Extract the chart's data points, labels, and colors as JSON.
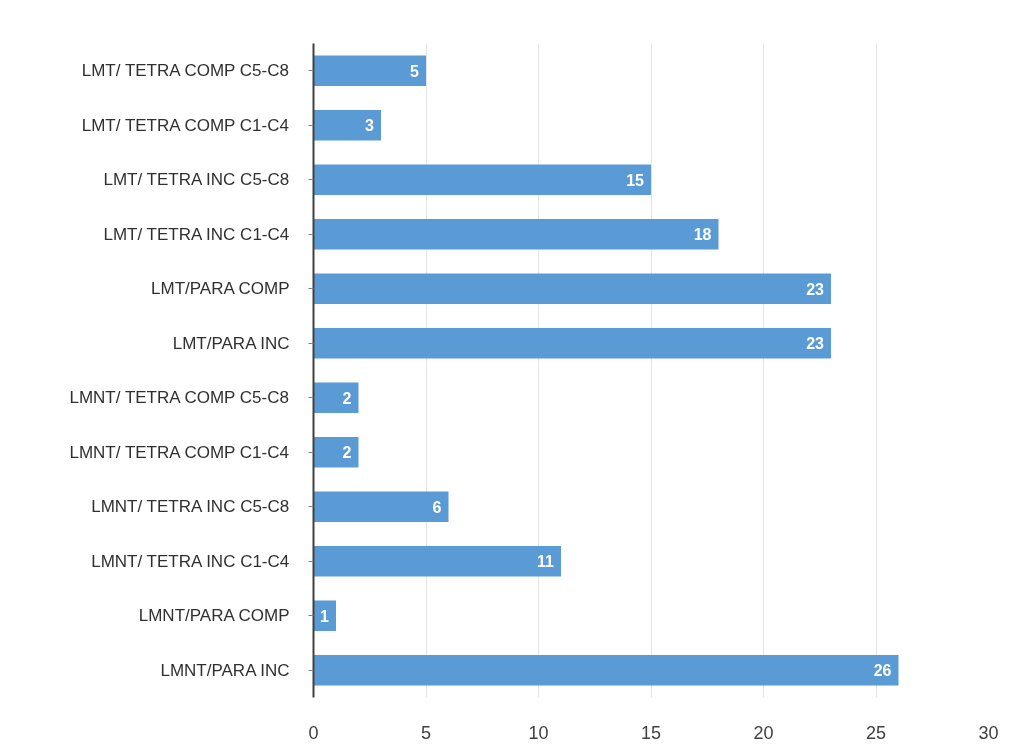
{
  "chart_data": {
    "type": "bar",
    "orientation": "horizontal",
    "categories": [
      "LMT/ TETRA COMP C5-C8",
      "LMT/ TETRA COMP C1-C4",
      "LMT/ TETRA INC C5-C8",
      "LMT/ TETRA INC C1-C4",
      "LMT/PARA COMP",
      "LMT/PARA INC",
      "LMNT/ TETRA COMP C5-C8",
      "LMNT/ TETRA COMP C1-C4",
      "LMNT/ TETRA INC C5-C8",
      "LMNT/ TETRA INC C1-C4",
      "LMNT/PARA COMP",
      "LMNT/PARA INC"
    ],
    "values": [
      5,
      3,
      15,
      18,
      23,
      23,
      2,
      2,
      6,
      11,
      1,
      26
    ],
    "color": "#5b9bd5",
    "xlim": [
      0,
      30
    ],
    "xticks": [
      0,
      5,
      10,
      15,
      20,
      25,
      30
    ],
    "grid": "x",
    "data_labels": true
  }
}
